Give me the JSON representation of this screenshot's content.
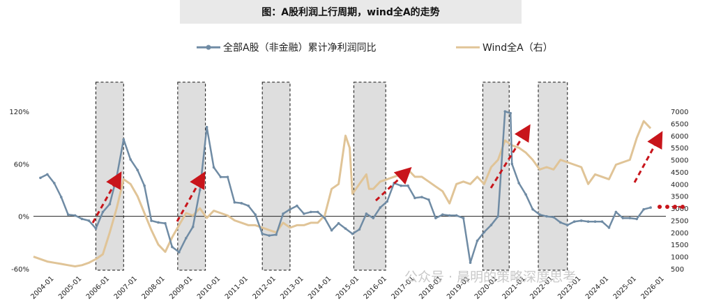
{
  "title": "图：A股利润上行周期，wind全A的走势",
  "watermark": "公众号 · 晨明的策略深度思考",
  "chart_data": {
    "type": "line",
    "title": "图：A股利润上行周期，wind全A的走势",
    "left_axis": {
      "min": -60,
      "max": 120,
      "ticks": [
        "-60%",
        "0%",
        "60%",
        "120%"
      ],
      "tick_values": [
        -60,
        0,
        60,
        120
      ]
    },
    "right_axis": {
      "min": 500,
      "max": 7000,
      "ticks": [
        "500",
        "1000",
        "1500",
        "2000",
        "2500",
        "3000",
        "3500",
        "4000",
        "4500",
        "5000",
        "5500",
        "6000",
        "6500",
        "7000"
      ],
      "tick_values": [
        500,
        1000,
        1500,
        2000,
        2500,
        3000,
        3500,
        4000,
        4500,
        5000,
        5500,
        6000,
        6500,
        7000
      ]
    },
    "x_range": [
      2004.0,
      2026.75
    ],
    "x_ticks": [
      "2004-01",
      "2005-01",
      "2006-01",
      "2007-01",
      "2008-01",
      "2009-01",
      "2010-01",
      "2011-01",
      "2012-01",
      "2013-01",
      "2014-01",
      "2015-01",
      "2016-01",
      "2017-01",
      "2018-01",
      "2019-01",
      "2020-01",
      "2021-01",
      "2022-01",
      "2023-01",
      "2024-01",
      "2025-01",
      "2026-01"
    ],
    "x_tick_values": [
      2004,
      2005,
      2006,
      2007,
      2008,
      2009,
      2010,
      2011,
      2012,
      2013,
      2014,
      2015,
      2016,
      2017,
      2018,
      2019,
      2020,
      2021,
      2022,
      2023,
      2024,
      2025,
      2026
    ],
    "shaded_periods": [
      [
        2006.25,
        2007.25
      ],
      [
        2009.2,
        2010.2
      ],
      [
        2012.25,
        2013.25
      ],
      [
        2015.55,
        2016.7
      ],
      [
        2020.2,
        2021.15
      ],
      [
        2022.2,
        2023.25
      ]
    ],
    "series": [
      {
        "name": "全部A股（非金融）累计净利润同比",
        "axis": "left",
        "color": "#6f8ba4",
        "x": [
          2004.25,
          2004.5,
          2004.75,
          2005.0,
          2005.25,
          2005.5,
          2005.75,
          2006.0,
          2006.25,
          2006.5,
          2006.75,
          2007.0,
          2007.25,
          2007.5,
          2007.75,
          2008.0,
          2008.25,
          2008.5,
          2008.75,
          2009.0,
          2009.25,
          2009.5,
          2009.75,
          2010.0,
          2010.25,
          2010.5,
          2010.75,
          2011.0,
          2011.25,
          2011.5,
          2011.75,
          2012.0,
          2012.25,
          2012.5,
          2012.75,
          2013.0,
          2013.25,
          2013.5,
          2013.75,
          2014.0,
          2014.25,
          2014.5,
          2014.75,
          2015.0,
          2015.25,
          2015.5,
          2015.75,
          2016.0,
          2016.25,
          2016.5,
          2016.75,
          2017.0,
          2017.25,
          2017.5,
          2017.75,
          2018.0,
          2018.25,
          2018.5,
          2018.75,
          2019.0,
          2019.25,
          2019.5,
          2019.75,
          2020.0,
          2020.25,
          2020.5,
          2020.75,
          2021.0,
          2021.2,
          2021.25,
          2021.5,
          2021.75,
          2022.0,
          2022.25,
          2022.5,
          2022.75,
          2023.0,
          2023.25,
          2023.5,
          2023.75,
          2024.0,
          2024.25,
          2024.5,
          2024.75,
          2025.0,
          2025.25,
          2025.5,
          2025.75,
          2026.0,
          2026.25
        ],
        "y": [
          44,
          48,
          38,
          22,
          2,
          1,
          -3,
          -5,
          -14,
          5,
          14,
          45,
          88,
          65,
          53,
          35,
          -5,
          -7,
          -8,
          -35,
          -41,
          -25,
          -12,
          30,
          102,
          56,
          45,
          45,
          16,
          15,
          12,
          2,
          -20,
          -22,
          -21,
          3,
          8,
          12,
          3,
          5,
          5,
          -2,
          -16,
          -8,
          -14,
          -20,
          -15,
          3,
          -2,
          10,
          17,
          38,
          35,
          35,
          21,
          22,
          19,
          -2,
          2,
          1,
          1,
          -2,
          -53,
          -28,
          -18,
          -10,
          0,
          120,
          118,
          60,
          38,
          25,
          8,
          2,
          0,
          -1,
          -7,
          -10,
          -6,
          -5,
          -6,
          -6,
          -6,
          -13,
          5,
          -2,
          -2,
          -3,
          8,
          10
        ]
      },
      {
        "name": "Wind全A（右）",
        "axis": "right",
        "color": "#e0c497",
        "x": [
          2004.0,
          2004.25,
          2004.5,
          2004.75,
          2005.0,
          2005.25,
          2005.5,
          2005.75,
          2006.0,
          2006.25,
          2006.5,
          2006.75,
          2007.0,
          2007.25,
          2007.5,
          2007.75,
          2008.0,
          2008.25,
          2008.5,
          2008.75,
          2009.0,
          2009.25,
          2009.5,
          2009.75,
          2010.0,
          2010.25,
          2010.5,
          2010.75,
          2011.0,
          2011.25,
          2011.5,
          2011.75,
          2012.0,
          2012.25,
          2012.5,
          2012.75,
          2013.0,
          2013.25,
          2013.5,
          2013.75,
          2014.0,
          2014.25,
          2014.5,
          2014.75,
          2015.0,
          2015.25,
          2015.4,
          2015.5,
          2015.75,
          2016.0,
          2016.1,
          2016.25,
          2016.5,
          2016.75,
          2017.0,
          2017.25,
          2017.5,
          2017.75,
          2018.0,
          2018.25,
          2018.5,
          2018.75,
          2019.0,
          2019.25,
          2019.5,
          2019.75,
          2020.0,
          2020.25,
          2020.5,
          2020.75,
          2021.0,
          2021.25,
          2021.5,
          2021.75,
          2022.0,
          2022.25,
          2022.5,
          2022.75,
          2023.0,
          2023.25,
          2023.5,
          2023.75,
          2024.0,
          2024.25,
          2024.5,
          2024.75,
          2025.0,
          2025.25,
          2025.5,
          2025.75,
          2026.0,
          2026.25
        ],
        "y": [
          1000,
          900,
          800,
          750,
          700,
          650,
          600,
          650,
          750,
          900,
          1100,
          2000,
          3000,
          4200,
          4000,
          3500,
          2800,
          2100,
          1500,
          1200,
          1800,
          2300,
          2800,
          2700,
          3000,
          2600,
          2900,
          2800,
          2700,
          2500,
          2400,
          2300,
          2300,
          2200,
          2100,
          2000,
          2400,
          2200,
          2300,
          2300,
          2400,
          2400,
          2700,
          3800,
          4000,
          6000,
          5500,
          3600,
          4000,
          4400,
          3800,
          3800,
          4100,
          4200,
          4300,
          4400,
          4600,
          4300,
          4300,
          4100,
          3900,
          3700,
          3200,
          4000,
          4100,
          4000,
          4300,
          4000,
          4700,
          5000,
          5800,
          5600,
          5500,
          5300,
          5000,
          4600,
          4700,
          4600,
          5000,
          4900,
          4800,
          4700,
          4000,
          4400,
          4300,
          4200,
          4800,
          4900,
          5000,
          5900,
          6600,
          6300
        ]
      }
    ]
  }
}
